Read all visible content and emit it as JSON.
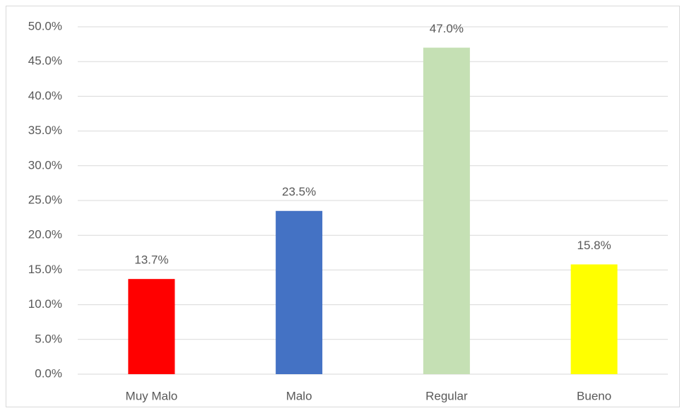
{
  "chart_data": {
    "type": "bar",
    "categories": [
      "Muy Malo",
      "Malo",
      "Regular",
      "Bueno"
    ],
    "values": [
      13.7,
      23.5,
      47.0,
      15.8
    ],
    "value_labels": [
      "13.7%",
      "23.5%",
      "47.0%",
      "15.8%"
    ],
    "colors": [
      "#ff0000",
      "#4472c4",
      "#c5e0b4",
      "#ffff00"
    ],
    "ylim": [
      0,
      50
    ],
    "yticks": [
      {
        "value": 0,
        "label": "0.0%"
      },
      {
        "value": 5,
        "label": "5.0%"
      },
      {
        "value": 10,
        "label": "10.0%"
      },
      {
        "value": 15,
        "label": "15.0%"
      },
      {
        "value": 20,
        "label": "20.0%"
      },
      {
        "value": 25,
        "label": "25.0%"
      },
      {
        "value": 30,
        "label": "30.0%"
      },
      {
        "value": 35,
        "label": "35.0%"
      },
      {
        "value": 40,
        "label": "40.0%"
      },
      {
        "value": 45,
        "label": "45.0%"
      },
      {
        "value": 50,
        "label": "50.0%"
      }
    ],
    "grid": true
  }
}
